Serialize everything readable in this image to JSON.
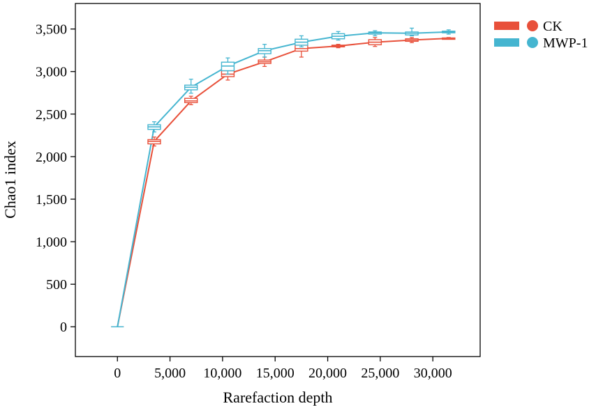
{
  "chart_data": {
    "type": "line",
    "xlabel": "Rarefaction depth",
    "ylabel": "Chao1 index",
    "xlim": [
      -4000,
      34500
    ],
    "ylim": [
      -350,
      3800
    ],
    "x_ticks": [
      0,
      5000,
      10000,
      15000,
      20000,
      25000,
      30000
    ],
    "x_tick_labels": [
      "0",
      "5,000",
      "10,000",
      "15,000",
      "20,000",
      "25,000",
      "30,000"
    ],
    "y_ticks": [
      0,
      500,
      1000,
      1500,
      2000,
      2500,
      3000,
      3500
    ],
    "y_tick_labels": [
      "0",
      "500",
      "1,000",
      "1,500",
      "2,000",
      "2,500",
      "3,000",
      "3,500"
    ],
    "grid": false,
    "legend_position": "top-right",
    "series": [
      {
        "name": "CK",
        "color": "#e8503a",
        "x": [
          0,
          3500,
          7000,
          10500,
          14000,
          17500,
          21000,
          24500,
          28000,
          31500
        ],
        "y": [
          0,
          2180,
          2655,
          2970,
          3115,
          3270,
          3300,
          3345,
          3370,
          3390
        ],
        "box": [
          {
            "q1": 0,
            "q3": 0,
            "min": 0,
            "max": 0
          },
          {
            "q1": 2150,
            "q3": 2200,
            "min": 2125,
            "max": 2230
          },
          {
            "q1": 2635,
            "q3": 2685,
            "min": 2610,
            "max": 2710
          },
          {
            "q1": 2940,
            "q3": 3010,
            "min": 2900,
            "max": 3040
          },
          {
            "q1": 3095,
            "q3": 3135,
            "min": 3060,
            "max": 3170
          },
          {
            "q1": 3240,
            "q3": 3310,
            "min": 3170,
            "max": 3330
          },
          {
            "q1": 3290,
            "q3": 3310,
            "min": 3280,
            "max": 3320
          },
          {
            "q1": 3315,
            "q3": 3375,
            "min": 3295,
            "max": 3400
          },
          {
            "q1": 3355,
            "q3": 3385,
            "min": 3340,
            "max": 3400
          },
          {
            "q1": 3385,
            "q3": 3395,
            "min": 3380,
            "max": 3400
          }
        ]
      },
      {
        "name": "MWP-1",
        "color": "#45b5d0",
        "x": [
          0,
          3500,
          7000,
          10500,
          14000,
          17500,
          21000,
          24500,
          28000,
          31500
        ],
        "y": [
          0,
          2350,
          2815,
          3065,
          3245,
          3345,
          3415,
          3455,
          3450,
          3465
        ],
        "box": [
          {
            "q1": 0,
            "q3": 0,
            "min": 0,
            "max": 0
          },
          {
            "q1": 2320,
            "q3": 2375,
            "min": 2290,
            "max": 2410
          },
          {
            "q1": 2785,
            "q3": 2840,
            "min": 2745,
            "max": 2910
          },
          {
            "q1": 3010,
            "q3": 3110,
            "min": 2970,
            "max": 3160
          },
          {
            "q1": 3210,
            "q3": 3270,
            "min": 3170,
            "max": 3320
          },
          {
            "q1": 3310,
            "q3": 3380,
            "min": 3290,
            "max": 3420
          },
          {
            "q1": 3385,
            "q3": 3445,
            "min": 3370,
            "max": 3470
          },
          {
            "q1": 3440,
            "q3": 3465,
            "min": 3420,
            "max": 3480
          },
          {
            "q1": 3430,
            "q3": 3465,
            "min": 3420,
            "max": 3510
          },
          {
            "q1": 3455,
            "q3": 3475,
            "min": 3440,
            "max": 3490
          }
        ]
      }
    ]
  }
}
